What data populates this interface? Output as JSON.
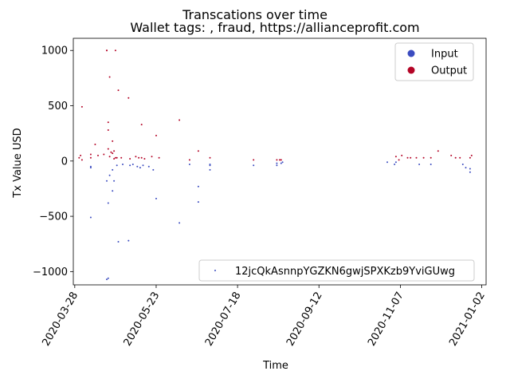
{
  "chart_data": {
    "type": "scatter",
    "title": "Transcations over time",
    "subtitle": "Wallet tags: , fraud, https://allianceprofit.com",
    "xlabel": "Time",
    "ylabel": "Tx Value USD",
    "xlim": [
      "2020-03-27",
      "2021-01-05"
    ],
    "ylim": [
      -1120,
      1110
    ],
    "x_ticks": [
      "2020-03-28",
      "2020-05-23",
      "2020-07-18",
      "2020-09-12",
      "2020-11-07",
      "2021-01-02"
    ],
    "y_ticks": [
      -1000,
      -500,
      0,
      500,
      1000
    ],
    "y_tick_labels": [
      "−1000",
      "−500",
      "0",
      "500",
      "1000"
    ],
    "grid": false,
    "legend_position": "top-right",
    "legend": [
      {
        "label": "Input",
        "color": "#3b4cc0"
      },
      {
        "label": "Output",
        "color": "#b40426"
      }
    ],
    "address_legend": {
      "label": "12jcQkAsnnpYGZKN6gwjSPXKzb9YviGUwg",
      "position": "bottom-right"
    },
    "series": [
      {
        "name": "Input",
        "color": "#3b4cc0",
        "points": [
          [
            "2020-04-08",
            -50
          ],
          [
            "2020-04-08",
            -60
          ],
          [
            "2020-04-08",
            -510
          ],
          [
            "2020-04-19",
            -1070
          ],
          [
            "2020-04-20",
            -1060
          ],
          [
            "2020-04-19",
            -180
          ],
          [
            "2020-04-20",
            -380
          ],
          [
            "2020-04-21",
            -130
          ],
          [
            "2020-04-23",
            -80
          ],
          [
            "2020-04-23",
            -270
          ],
          [
            "2020-04-24",
            -180
          ],
          [
            "2020-04-26",
            -40
          ],
          [
            "2020-04-27",
            -730
          ],
          [
            "2020-04-30",
            -30
          ],
          [
            "2020-05-04",
            -720
          ],
          [
            "2020-05-05",
            -40
          ],
          [
            "2020-05-07",
            -30
          ],
          [
            "2020-05-10",
            -50
          ],
          [
            "2020-05-12",
            -60
          ],
          [
            "2020-05-14",
            -40
          ],
          [
            "2020-05-18",
            -50
          ],
          [
            "2020-05-21",
            -80
          ],
          [
            "2020-05-23",
            -340
          ],
          [
            "2020-06-08",
            -560
          ],
          [
            "2020-06-15",
            -30
          ],
          [
            "2020-06-21",
            -230
          ],
          [
            "2020-06-21",
            -370
          ],
          [
            "2020-06-29",
            -30
          ],
          [
            "2020-06-29",
            -40
          ],
          [
            "2020-06-29",
            -80
          ],
          [
            "2020-07-29",
            -40
          ],
          [
            "2020-08-14",
            -20
          ],
          [
            "2020-08-14",
            -40
          ],
          [
            "2020-08-17",
            -20
          ],
          [
            "2020-08-18",
            -10
          ],
          [
            "2020-10-29",
            -10
          ],
          [
            "2020-11-03",
            -30
          ],
          [
            "2020-11-04",
            -10
          ],
          [
            "2020-11-20",
            -30
          ],
          [
            "2020-11-28",
            -30
          ],
          [
            "2020-12-20",
            -30
          ],
          [
            "2020-12-22",
            -60
          ],
          [
            "2020-12-25",
            -70
          ],
          [
            "2020-12-25",
            -100
          ]
        ]
      },
      {
        "name": "Output",
        "color": "#b40426",
        "points": [
          [
            "2020-03-31",
            30
          ],
          [
            "2020-04-01",
            50
          ],
          [
            "2020-04-02",
            490
          ],
          [
            "2020-04-02",
            10
          ],
          [
            "2020-04-08",
            60
          ],
          [
            "2020-04-08",
            30
          ],
          [
            "2020-04-11",
            150
          ],
          [
            "2020-04-13",
            50
          ],
          [
            "2020-04-17",
            60
          ],
          [
            "2020-04-19",
            1000
          ],
          [
            "2020-04-19",
            1000
          ],
          [
            "2020-04-20",
            350
          ],
          [
            "2020-04-20",
            280
          ],
          [
            "2020-04-20",
            110
          ],
          [
            "2020-04-21",
            760
          ],
          [
            "2020-04-21",
            40
          ],
          [
            "2020-04-22",
            80
          ],
          [
            "2020-04-23",
            180
          ],
          [
            "2020-04-23",
            70
          ],
          [
            "2020-04-24",
            90
          ],
          [
            "2020-04-24",
            20
          ],
          [
            "2020-04-25",
            1000
          ],
          [
            "2020-04-25",
            30
          ],
          [
            "2020-04-26",
            30
          ],
          [
            "2020-04-27",
            640
          ],
          [
            "2020-04-29",
            30
          ],
          [
            "2020-05-04",
            570
          ],
          [
            "2020-05-05",
            20
          ],
          [
            "2020-05-09",
            40
          ],
          [
            "2020-05-11",
            30
          ],
          [
            "2020-05-13",
            330
          ],
          [
            "2020-05-13",
            30
          ],
          [
            "2020-05-15",
            20
          ],
          [
            "2020-05-20",
            40
          ],
          [
            "2020-05-23",
            230
          ],
          [
            "2020-05-25",
            30
          ],
          [
            "2020-06-08",
            370
          ],
          [
            "2020-06-15",
            10
          ],
          [
            "2020-06-21",
            90
          ],
          [
            "2020-06-29",
            30
          ],
          [
            "2020-07-29",
            10
          ],
          [
            "2020-08-14",
            10
          ],
          [
            "2020-08-16",
            10
          ],
          [
            "2020-08-17",
            10
          ],
          [
            "2020-11-04",
            40
          ],
          [
            "2020-11-06",
            10
          ],
          [
            "2020-11-08",
            50
          ],
          [
            "2020-11-12",
            30
          ],
          [
            "2020-11-14",
            30
          ],
          [
            "2020-11-18",
            30
          ],
          [
            "2020-11-23",
            30
          ],
          [
            "2020-11-28",
            30
          ],
          [
            "2020-12-03",
            90
          ],
          [
            "2020-12-12",
            50
          ],
          [
            "2020-12-15",
            30
          ],
          [
            "2020-12-18",
            30
          ],
          [
            "2020-12-25",
            30
          ],
          [
            "2020-12-26",
            50
          ]
        ]
      }
    ]
  }
}
